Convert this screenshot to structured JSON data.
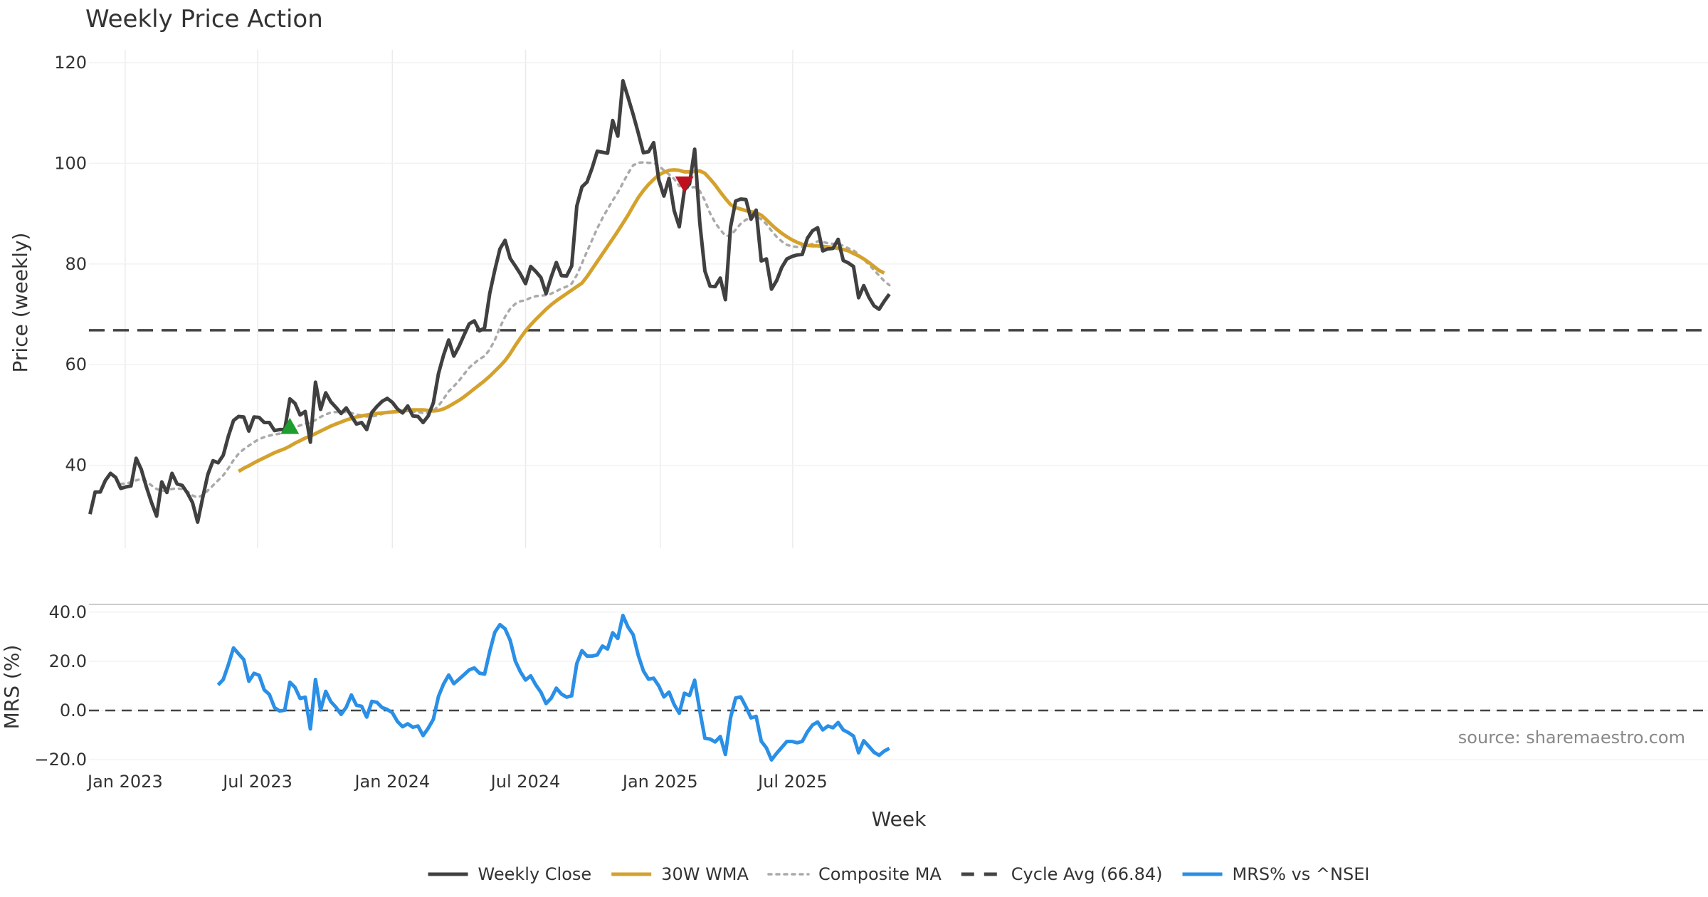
{
  "chart_data": [
    {
      "id": "price",
      "type": "line",
      "title": "Weekly Price Action",
      "ylabel": "Price (weekly)",
      "ylim": [
        25,
        123
      ],
      "yticks": [
        40,
        60,
        80,
        100,
        120
      ],
      "grid": true,
      "x_start": "2022-11-14",
      "x_end": "2025-12-15",
      "series": [
        {
          "name": "Weekly Close",
          "color": "#404040",
          "style": "solid",
          "values": [
            30.3,
            34.7,
            34.7,
            37.0,
            38.4,
            37.6,
            35.4,
            35.7,
            35.9,
            41.4,
            39.2,
            35.7,
            32.6,
            29.9,
            36.7,
            34.6,
            38.4,
            36.3,
            36.0,
            34.5,
            32.6,
            28.7,
            33.6,
            38.2,
            40.9,
            40.5,
            42.0,
            45.8,
            48.9,
            49.7,
            49.6,
            46.8,
            49.6,
            49.5,
            48.5,
            48.5,
            46.9,
            47.1,
            47.1,
            53.2,
            52.3,
            50.0,
            50.7,
            44.6,
            56.5,
            51.1,
            54.4,
            52.6,
            51.5,
            50.3,
            51.4,
            49.8,
            48.2,
            48.5,
            47.1,
            50.5,
            51.7,
            52.7,
            53.3,
            52.5,
            51.2,
            50.4,
            51.8,
            49.8,
            49.7,
            48.5,
            49.8,
            52.4,
            58.2,
            61.9,
            64.9,
            61.7,
            63.6,
            65.9,
            68.1,
            68.7,
            66.7,
            67.3,
            74.1,
            78.8,
            83.0,
            84.7,
            81.1,
            79.6,
            78.0,
            76.1,
            79.5,
            78.5,
            77.3,
            74.1,
            77.4,
            80.3,
            77.7,
            77.6,
            79.6,
            91.5,
            95.3,
            96.3,
            99.1,
            102.4,
            102.2,
            102.0,
            108.5,
            105.4,
            116.4,
            113.1,
            109.7,
            106.0,
            102.1,
            102.3,
            104.1,
            96.7,
            93.5,
            97.0,
            90.6,
            87.4,
            94.7,
            95.9,
            102.8,
            88.2,
            78.6,
            75.6,
            75.5,
            77.2,
            72.9,
            87.3,
            92.5,
            92.9,
            92.8,
            88.9,
            90.7,
            80.6,
            81.0,
            75.0,
            76.7,
            79.3,
            81.0,
            81.5,
            81.8,
            81.9,
            85.1,
            86.6,
            87.2,
            82.6,
            83.0,
            83.1,
            84.9,
            80.7,
            80.2,
            79.5,
            73.3,
            75.7,
            73.4,
            71.7,
            71.0,
            72.6,
            74.0
          ]
        },
        {
          "name": "30W WMA",
          "color": "#D4A22C",
          "style": "solid",
          "values": [
            null,
            null,
            null,
            null,
            null,
            null,
            null,
            null,
            null,
            null,
            null,
            null,
            null,
            null,
            null,
            null,
            null,
            null,
            null,
            null,
            null,
            null,
            null,
            null,
            null,
            null,
            null,
            null,
            null,
            38.8,
            39.4,
            39.9,
            40.5,
            41.0,
            41.5,
            42.0,
            42.5,
            42.9,
            43.3,
            43.8,
            44.4,
            44.9,
            45.4,
            45.8,
            46.3,
            46.8,
            47.3,
            47.8,
            48.2,
            48.6,
            49.0,
            49.3,
            49.6,
            49.8,
            50.0,
            50.2,
            50.3,
            50.4,
            50.5,
            50.6,
            50.7,
            50.8,
            50.9,
            51.0,
            51.0,
            51.0,
            50.9,
            50.8,
            50.9,
            51.2,
            51.7,
            52.3,
            52.9,
            53.6,
            54.4,
            55.2,
            56.0,
            56.8,
            57.7,
            58.7,
            59.7,
            60.8,
            62.2,
            63.8,
            65.3,
            66.7,
            67.9,
            69.0,
            70.0,
            71.0,
            71.9,
            72.7,
            73.4,
            74.1,
            74.8,
            75.5,
            76.2,
            77.5,
            79.0,
            80.5,
            82.0,
            83.5,
            85.0,
            86.5,
            88.1,
            89.7,
            91.5,
            93.2,
            94.6,
            95.8,
            96.8,
            97.7,
            98.2,
            98.6,
            98.7,
            98.6,
            98.3,
            98.3,
            98.4,
            98.5,
            98.0,
            96.9,
            95.7,
            94.3,
            93.0,
            91.8,
            91.2,
            90.9,
            90.6,
            90.4,
            90.2,
            89.7,
            88.8,
            87.8,
            86.9,
            86.1,
            85.4,
            84.8,
            84.3,
            83.9,
            83.7,
            83.6,
            83.6,
            83.5,
            83.4,
            83.3,
            83.1,
            82.9,
            82.6,
            82.1,
            81.6,
            81.0,
            80.3,
            79.5,
            78.7,
            78.2
          ]
        },
        {
          "name": "Composite MA",
          "color": "#AAAAAA",
          "style": "dotted",
          "values": [
            null,
            null,
            null,
            null,
            null,
            null,
            36.3,
            36.4,
            36.6,
            37.0,
            37.3,
            36.8,
            36.0,
            35.3,
            34.9,
            35.0,
            35.3,
            35.4,
            35.3,
            34.8,
            34.0,
            33.6,
            34.1,
            35.0,
            36.0,
            37.0,
            38.0,
            39.4,
            41.0,
            42.3,
            43.2,
            43.9,
            44.6,
            45.2,
            45.6,
            45.9,
            46.1,
            46.3,
            46.6,
            47.1,
            47.6,
            47.9,
            48.3,
            48.4,
            49.0,
            49.6,
            50.1,
            50.5,
            50.6,
            50.6,
            50.6,
            50.4,
            50.1,
            49.9,
            49.7,
            49.7,
            49.9,
            50.2,
            50.6,
            50.7,
            50.7,
            50.7,
            50.8,
            50.7,
            50.6,
            50.4,
            50.4,
            50.8,
            51.8,
            53.2,
            54.7,
            55.7,
            56.8,
            58.1,
            59.4,
            60.3,
            61.1,
            61.7,
            63.0,
            64.9,
            67.4,
            69.5,
            71.1,
            72.1,
            72.6,
            72.8,
            73.3,
            73.6,
            73.7,
            73.8,
            74.1,
            74.6,
            75.1,
            75.5,
            76.1,
            77.8,
            80.1,
            82.5,
            84.8,
            87.1,
            89.1,
            90.9,
            92.6,
            94.2,
            96.1,
            98.0,
            99.6,
            100.1,
            100.2,
            100.1,
            100.1,
            99.5,
            98.6,
            97.8,
            96.9,
            95.5,
            95.2,
            95.1,
            95.3,
            94.5,
            92.6,
            90.1,
            88.2,
            86.8,
            85.6,
            85.6,
            86.8,
            88.0,
            88.8,
            89.2,
            89.5,
            88.9,
            87.9,
            86.6,
            85.4,
            84.5,
            83.8,
            83.5,
            83.4,
            83.4,
            83.6,
            84.0,
            84.5,
            84.4,
            84.1,
            84.0,
            84.0,
            83.6,
            83.1,
            82.7,
            81.9,
            80.9,
            79.9,
            78.8,
            77.7,
            76.6,
            75.8
          ]
        }
      ],
      "reference_line": {
        "name": "Cycle Avg (66.84)",
        "value": 66.84,
        "color": "#444444",
        "style": "dashed"
      },
      "markers": [
        {
          "type": "buy",
          "shape": "triangle-up",
          "color": "#1E9E2E",
          "week": 39,
          "value": 47.6
        },
        {
          "type": "sell",
          "shape": "triangle-down",
          "color": "#C0101E",
          "week": 116,
          "value": 96.0
        }
      ]
    },
    {
      "id": "mrs",
      "type": "line",
      "ylabel": "MRS (%)",
      "ylim": [
        -21,
        43
      ],
      "yticks": [
        "40.0",
        "20.0",
        "0.0",
        "−20.0"
      ],
      "xlabel": "Week",
      "x_tick_labels": [
        "Jan 2023",
        "Jul 2023",
        "Jan 2024",
        "Jul 2024",
        "Jan 2025",
        "Jul 2025"
      ],
      "grid": true,
      "series": [
        {
          "name": "MRS% vs ^NSEI",
          "color": "#2A8FE6",
          "style": "solid",
          "values": [
            null,
            null,
            null,
            null,
            null,
            null,
            null,
            null,
            null,
            null,
            null,
            null,
            null,
            null,
            null,
            null,
            null,
            null,
            null,
            null,
            null,
            null,
            null,
            null,
            null,
            10.4,
            12.6,
            18.6,
            25.4,
            23.0,
            20.7,
            11.9,
            15.1,
            14.3,
            8.4,
            6.5,
            1.2,
            -0.2,
            0.1,
            11.5,
            9.4,
            4.9,
            5.4,
            -7.5,
            12.6,
            0.2,
            7.8,
            3.6,
            1.3,
            -1.6,
            1.3,
            6.3,
            2.1,
            1.7,
            -2.7,
            3.7,
            3.3,
            1.2,
            0.4,
            -0.9,
            -4.5,
            -6.6,
            -5.4,
            -6.8,
            -6.3,
            -10.2,
            -7.2,
            -3.6,
            5.7,
            10.8,
            14.4,
            10.9,
            12.7,
            14.6,
            16.5,
            17.3,
            15.2,
            14.8,
            23.9,
            31.8,
            34.9,
            33.2,
            28.5,
            20.1,
            15.7,
            12.4,
            14.1,
            10.4,
            7.4,
            2.8,
            5.0,
            9.1,
            6.7,
            5.4,
            6.0,
            19.1,
            24.3,
            22.1,
            22.1,
            22.6,
            26.2,
            25.0,
            31.6,
            29.3,
            38.6,
            33.9,
            30.8,
            22.4,
            16.1,
            12.7,
            13.1,
            10.0,
            5.5,
            7.5,
            2.4,
            -1.1,
            7.0,
            6.1,
            12.3,
            -0.1,
            -11.3,
            -11.6,
            -12.8,
            -10.6,
            -17.9,
            -3.0,
            5.1,
            5.5,
            1.5,
            -3.0,
            -2.4,
            -12.5,
            -15.2,
            -20.1,
            -17.4,
            -15.0,
            -12.6,
            -12.6,
            -13.1,
            -12.6,
            -8.7,
            -5.9,
            -4.7,
            -7.9,
            -6.3,
            -7.0,
            -4.9,
            -7.9,
            -9.0,
            -10.4,
            -17.2,
            -12.3,
            -14.6,
            -17.0,
            -18.2,
            -16.5,
            -15.4
          ]
        }
      ],
      "reference_line": {
        "value": 0,
        "color": "#444444",
        "style": "dashed"
      }
    }
  ],
  "legend": {
    "placement": "bottom-center",
    "items": [
      {
        "label": "Weekly Close",
        "color": "#404040",
        "style": "solid"
      },
      {
        "label": "30W WMA",
        "color": "#D4A22C",
        "style": "solid"
      },
      {
        "label": "Composite MA",
        "color": "#AAAAAA",
        "style": "dotted"
      },
      {
        "label": "Cycle Avg (66.84)",
        "color": "#444444",
        "style": "dashed"
      },
      {
        "label": "MRS% vs ^NSEI",
        "color": "#2A8FE6",
        "style": "solid"
      }
    ]
  },
  "source_note": "source: sharemaestro.com"
}
